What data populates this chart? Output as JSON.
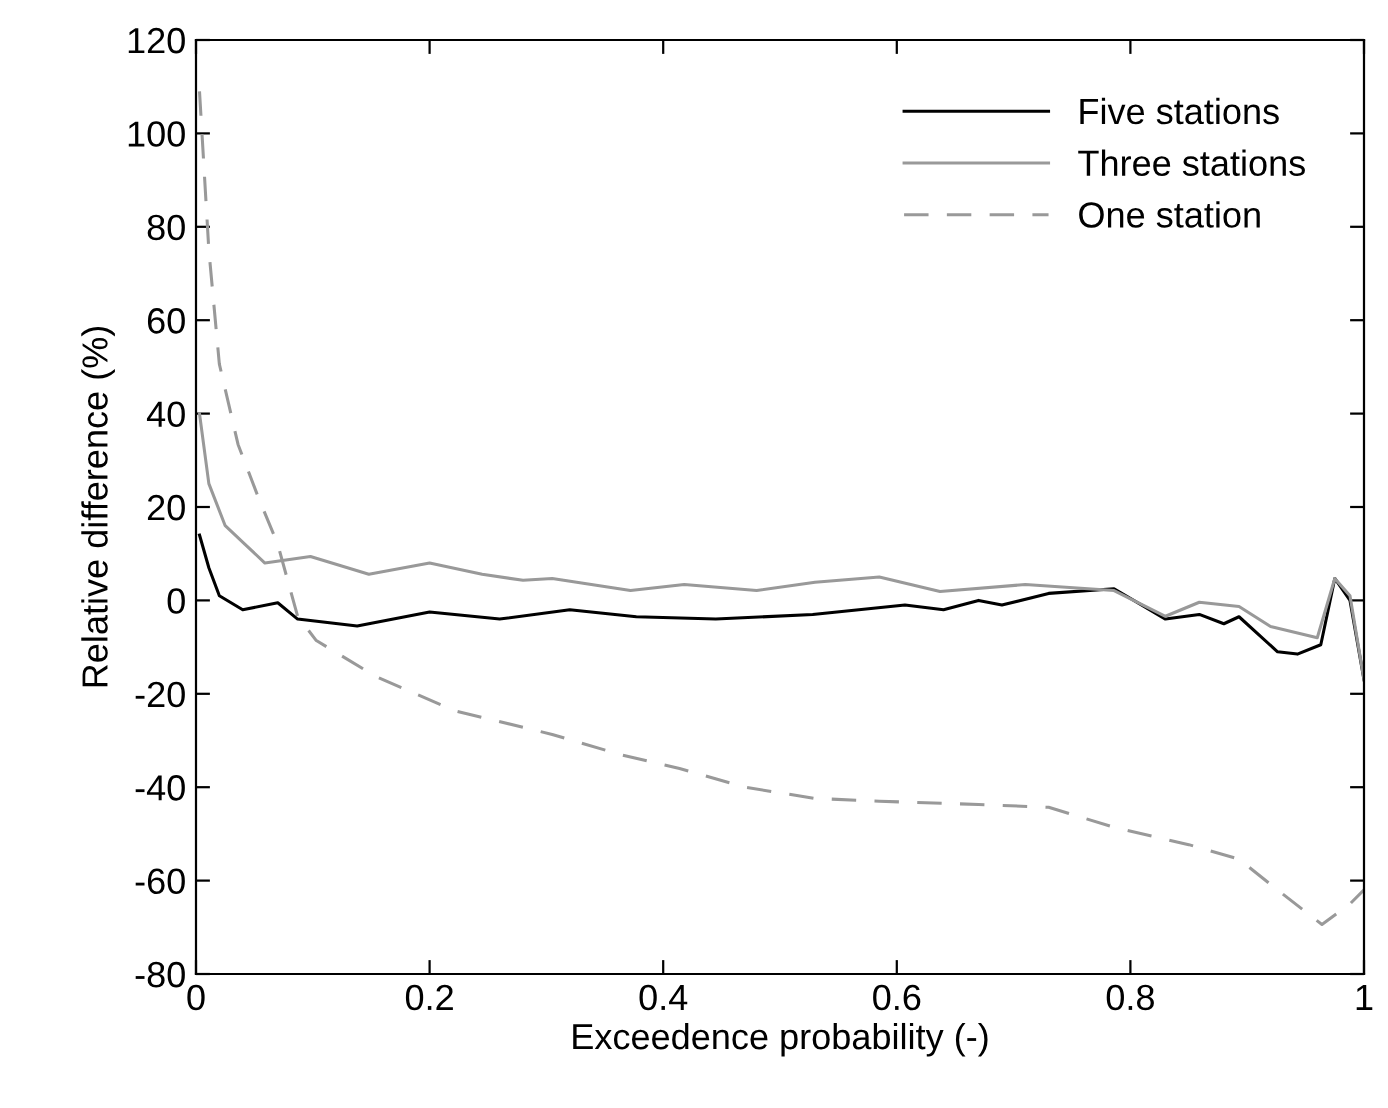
{
  "chart_data": {
    "type": "line",
    "xlabel": "Exceedence probability (-)",
    "ylabel": "Relative difference (%)",
    "xlim": [
      0,
      1
    ],
    "ylim": [
      -80,
      120
    ],
    "xticks": [
      0,
      0.2,
      0.4,
      0.6,
      0.8,
      1
    ],
    "yticks": [
      -80,
      -60,
      -40,
      -20,
      0,
      20,
      40,
      60,
      80,
      100,
      120
    ],
    "grid": false,
    "legend": "top right",
    "marker": "none",
    "series": [
      {
        "name": "Five stations",
        "color": "#000000",
        "line_style": "solid",
        "x": [
          0.003,
          0.011,
          0.02,
          0.04,
          0.07,
          0.087,
          0.138,
          0.2,
          0.26,
          0.32,
          0.377,
          0.445,
          0.528,
          0.607,
          0.64,
          0.67,
          0.69,
          0.73,
          0.786,
          0.83,
          0.859,
          0.88,
          0.893,
          0.926,
          0.943,
          0.963,
          0.975,
          0.988,
          1.0
        ],
        "values": [
          14,
          7,
          1,
          -2,
          -0.5,
          -4,
          -5.5,
          -2.5,
          -4,
          -2,
          -3.5,
          -4,
          -3,
          -1,
          -2,
          0,
          -1,
          1.5,
          2.5,
          -4,
          -3,
          -5,
          -3.5,
          -11,
          -11.5,
          -9.5,
          4.7,
          0,
          -17
        ]
      },
      {
        "name": "Three stations",
        "color": "#999999",
        "line_style": "solid",
        "x": [
          0.003,
          0.011,
          0.025,
          0.042,
          0.059,
          0.098,
          0.148,
          0.2,
          0.245,
          0.28,
          0.305,
          0.372,
          0.418,
          0.48,
          0.53,
          0.585,
          0.637,
          0.71,
          0.786,
          0.83,
          0.859,
          0.893,
          0.92,
          0.96,
          0.975,
          0.988,
          1.0
        ],
        "values": [
          40,
          25,
          16,
          12,
          8,
          9.4,
          5.6,
          8,
          5.6,
          4.3,
          4.7,
          2.1,
          3.4,
          2.1,
          3.9,
          5,
          1.9,
          3.4,
          2.1,
          -3.4,
          -0.4,
          -1.3,
          -5.6,
          -8,
          4.7,
          1,
          -17
        ]
      },
      {
        "name": "One station",
        "color": "#999999",
        "line_style": "dashed",
        "x": [
          0.003,
          0.011,
          0.02,
          0.036,
          0.053,
          0.07,
          0.087,
          0.103,
          0.154,
          0.221,
          0.305,
          0.363,
          0.414,
          0.47,
          0.53,
          0.585,
          0.67,
          0.73,
          0.786,
          0.85,
          0.893,
          0.926,
          0.964,
          0.988,
          1.0
        ],
        "values": [
          109,
          75,
          50.6,
          33.4,
          22.3,
          12,
          -3.4,
          -8.6,
          -16.3,
          -23.6,
          -28.7,
          -33,
          -36,
          -40,
          -42.4,
          -43,
          -43.7,
          -44.3,
          -48.6,
          -52.3,
          -55.4,
          -62,
          -69.4,
          -65,
          -62
        ]
      }
    ]
  }
}
